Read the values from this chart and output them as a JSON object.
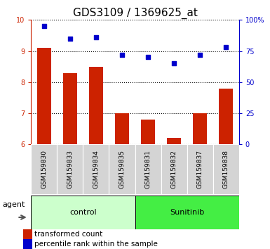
{
  "title": "GDS3109 / 1369625_at",
  "samples": [
    "GSM159830",
    "GSM159833",
    "GSM159834",
    "GSM159835",
    "GSM159831",
    "GSM159832",
    "GSM159837",
    "GSM159838"
  ],
  "bar_values": [
    9.1,
    8.3,
    8.5,
    7.0,
    6.8,
    6.2,
    7.0,
    7.8
  ],
  "dot_values": [
    95,
    85,
    86,
    72,
    70,
    65,
    72,
    78
  ],
  "bar_color": "#cc2200",
  "dot_color": "#0000cc",
  "ylim_left": [
    6,
    10
  ],
  "ylim_right": [
    0,
    100
  ],
  "yticks_left": [
    6,
    7,
    8,
    9,
    10
  ],
  "yticks_right": [
    0,
    25,
    50,
    75,
    100
  ],
  "ytick_labels_right": [
    "0",
    "25",
    "50",
    "75",
    "100%"
  ],
  "groups": [
    {
      "label": "control",
      "indices": [
        0,
        1,
        2,
        3
      ],
      "color": "#ccffcc"
    },
    {
      "label": "Sunitinib",
      "indices": [
        4,
        5,
        6,
        7
      ],
      "color": "#44ee44"
    }
  ],
  "agent_label": "agent",
  "legend_bar_label": "transformed count",
  "legend_dot_label": "percentile rank within the sample",
  "bar_bottom": 6,
  "title_fontsize": 11,
  "tick_fontsize": 7,
  "sample_fontsize": 6.5,
  "group_fontsize": 8,
  "legend_fontsize": 7.5,
  "agent_fontsize": 8
}
